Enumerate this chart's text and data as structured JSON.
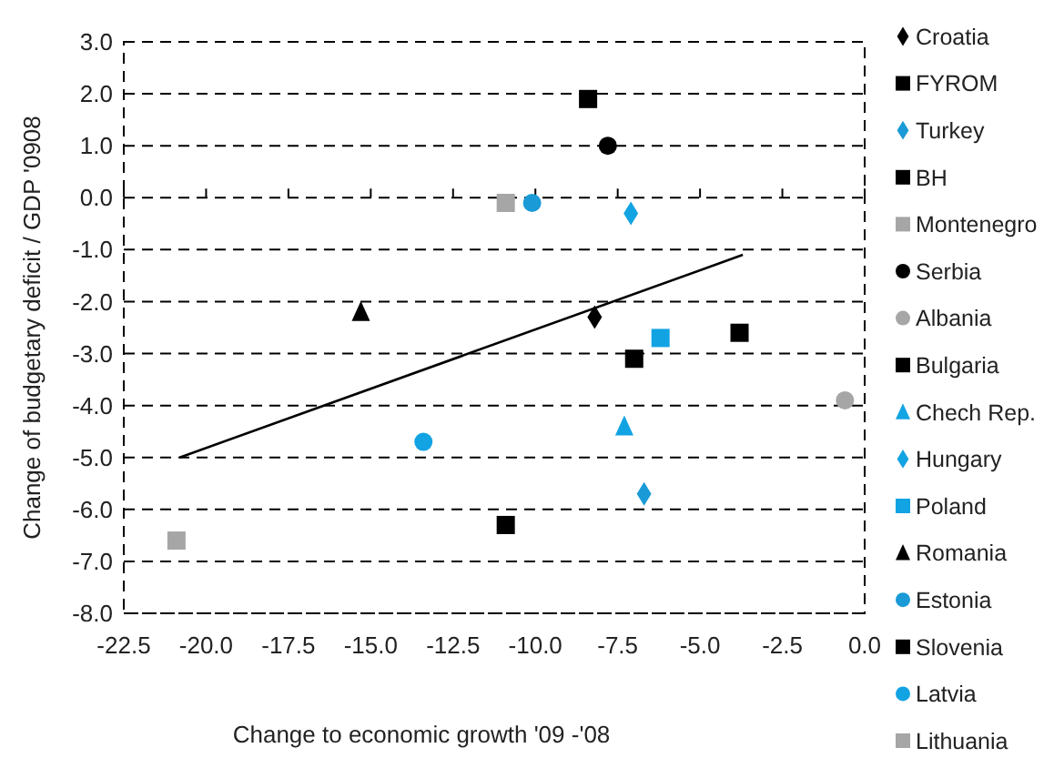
{
  "chart_data": {
    "type": "scatter",
    "xlabel": "Change to economic growth '09 -'08",
    "ylabel": "Change of budgetary deficit / GDP '0908",
    "xlim": [
      -22.5,
      0
    ],
    "ylim": [
      -8,
      3
    ],
    "xticks": [
      {
        "value": -22.5,
        "label": "-22.5"
      },
      {
        "value": -20,
        "label": "-20.0"
      },
      {
        "value": -17.5,
        "label": "-17.5"
      },
      {
        "value": -15,
        "label": "-15.0"
      },
      {
        "value": -12.5,
        "label": "-12.5"
      },
      {
        "value": -10,
        "label": "-10.0"
      },
      {
        "value": -7.5,
        "label": "-7.5"
      },
      {
        "value": -5,
        "label": "-5.0"
      },
      {
        "value": -2.5,
        "label": "-2.5"
      },
      {
        "value": 0,
        "label": "0.0"
      }
    ],
    "yticks": [
      {
        "value": 3,
        "label": "3.0"
      },
      {
        "value": 2,
        "label": "2.0"
      },
      {
        "value": 1,
        "label": "1.0"
      },
      {
        "value": 0,
        "label": "0.0"
      },
      {
        "value": -1,
        "label": "-1.0"
      },
      {
        "value": -2,
        "label": "-2.0"
      },
      {
        "value": -3,
        "label": "-3.0"
      },
      {
        "value": -4,
        "label": "-4.0"
      },
      {
        "value": -5,
        "label": "-5.0"
      },
      {
        "value": -6,
        "label": "-6.0"
      },
      {
        "value": -7,
        "label": "-7.0"
      },
      {
        "value": -8,
        "label": "-8.0"
      }
    ],
    "grid": "y",
    "legend": "right",
    "series": [
      {
        "name": "Croatia",
        "color": "#000000",
        "marker": "diamond",
        "x": [
          -8.2
        ],
        "values": [
          -2.3
        ]
      },
      {
        "name": "FYROM",
        "color": "#000000",
        "marker": "square",
        "x": [
          -7.0
        ],
        "values": [
          -3.1
        ]
      },
      {
        "name": "Turkey",
        "color": "#1a9ad6",
        "marker": "diamond",
        "x": [
          -6.7
        ],
        "values": [
          -5.7
        ]
      },
      {
        "name": "BH",
        "color": "#000000",
        "marker": "square",
        "x": [
          -8.4
        ],
        "values": [
          1.9
        ]
      },
      {
        "name": "Montenegro",
        "color": "#a6a6a6",
        "marker": "square",
        "x": [
          -10.9
        ],
        "values": [
          -0.1
        ]
      },
      {
        "name": "Serbia",
        "color": "#000000",
        "marker": "circle",
        "x": [
          -7.8
        ],
        "values": [
          1.0
        ]
      },
      {
        "name": "Albania",
        "color": "#a6a6a6",
        "marker": "circle",
        "x": [
          -0.6
        ],
        "values": [
          -3.9
        ]
      },
      {
        "name": "Bulgaria",
        "color": "#000000",
        "marker": "square",
        "x": [
          -3.8
        ],
        "values": [
          -2.6
        ]
      },
      {
        "name": "Chech Rep.",
        "color": "#12a3e3",
        "marker": "triangle",
        "x": [
          -7.3
        ],
        "values": [
          -4.4
        ]
      },
      {
        "name": "Hungary",
        "color": "#12a3e3",
        "marker": "diamond",
        "x": [
          -7.1
        ],
        "values": [
          -0.3
        ]
      },
      {
        "name": "Poland",
        "color": "#12a3e3",
        "marker": "square",
        "x": [
          -6.2
        ],
        "values": [
          -2.7
        ]
      },
      {
        "name": "Romania",
        "color": "#000000",
        "marker": "triangle",
        "x": [
          -15.3
        ],
        "values": [
          -2.2
        ]
      },
      {
        "name": "Estonia",
        "color": "#1a9ad6",
        "marker": "circle",
        "x": [
          -10.1
        ],
        "values": [
          -0.1
        ]
      },
      {
        "name": "Slovenia",
        "color": "#000000",
        "marker": "square",
        "x": [
          -10.9
        ],
        "values": [
          -6.3
        ]
      },
      {
        "name": "Latvia",
        "color": "#12a3e3",
        "marker": "circle",
        "x": [
          -13.4
        ],
        "values": [
          -4.7
        ]
      },
      {
        "name": "Lithuania",
        "color": "#a6a6a6",
        "marker": "square",
        "x": [
          -20.9
        ],
        "values": [
          -6.6
        ]
      },
      {
        "type": "line",
        "color": "#000000",
        "marker": "none",
        "x": [
          -20.8,
          -3.7
        ],
        "values": [
          -5.0,
          -1.1
        ]
      }
    ]
  }
}
